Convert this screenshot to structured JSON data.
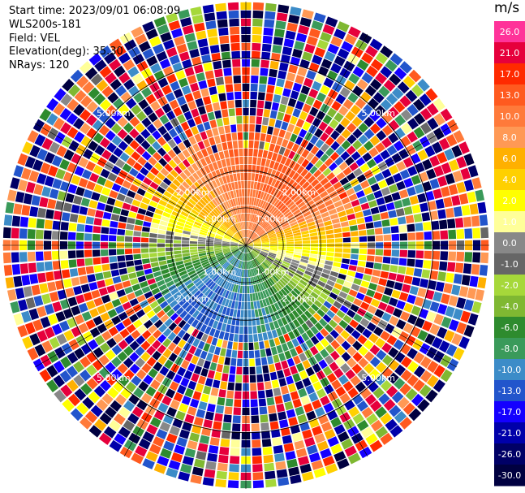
{
  "header": {
    "start_time": "Start time: 2023/09/01 06:08:09",
    "instrument": "WLS200s-181",
    "field": "Field: VEL",
    "elevation": "Elevation(deg): 35.30",
    "nrays": "NRays: 120"
  },
  "chart_data": {
    "type": "heatmap",
    "projection": "polar-ppi",
    "field": "VEL",
    "units": "m/s",
    "n_rays": 120,
    "elevation_deg": 35.3,
    "max_range_km": 6.5,
    "range_rings_km": [
      1.0,
      2.0,
      5.0
    ],
    "ring_labels": [
      "1.00km",
      "2.00km",
      "5.00km"
    ],
    "colorbar": {
      "unit_label": "m/s",
      "ticks": [
        "26.0",
        "21.0",
        "17.0",
        "13.0",
        "10.0",
        "8.0",
        "6.0",
        "4.0",
        "2.0",
        "1.0",
        "0.0",
        "-1.0",
        "-2.0",
        "-4.0",
        "-6.0",
        "-8.0",
        "-10.0",
        "-13.0",
        "-17.0",
        "-21.0",
        "-26.0",
        "-30.0"
      ],
      "colors": [
        "#ff3399",
        "#e6003c",
        "#ff2a00",
        "#ff5a1f",
        "#ff7a3a",
        "#ff9955",
        "#ffb000",
        "#ffd000",
        "#ffff00",
        "#ffff99",
        "#888888",
        "#666666",
        "#a6d83a",
        "#7fb832",
        "#2e8b2e",
        "#3a9a5a",
        "#3c8cc8",
        "#2255cc",
        "#1400ff",
        "#0000aa",
        "#000066",
        "#000040"
      ]
    },
    "approx_field_by_sector": [
      {
        "azimuth_deg": 0,
        "velocity_ms": 13.0
      },
      {
        "azimuth_deg": 45,
        "velocity_ms": 15.0
      },
      {
        "azimuth_deg": 90,
        "velocity_ms": 4.0
      },
      {
        "azimuth_deg": 135,
        "velocity_ms": -4.0
      },
      {
        "azimuth_deg": 180,
        "velocity_ms": -10.0
      },
      {
        "azimuth_deg": 225,
        "velocity_ms": -11.0
      },
      {
        "azimuth_deg": 270,
        "velocity_ms": -1.0
      },
      {
        "azimuth_deg": 315,
        "velocity_ms": 8.0
      }
    ]
  }
}
